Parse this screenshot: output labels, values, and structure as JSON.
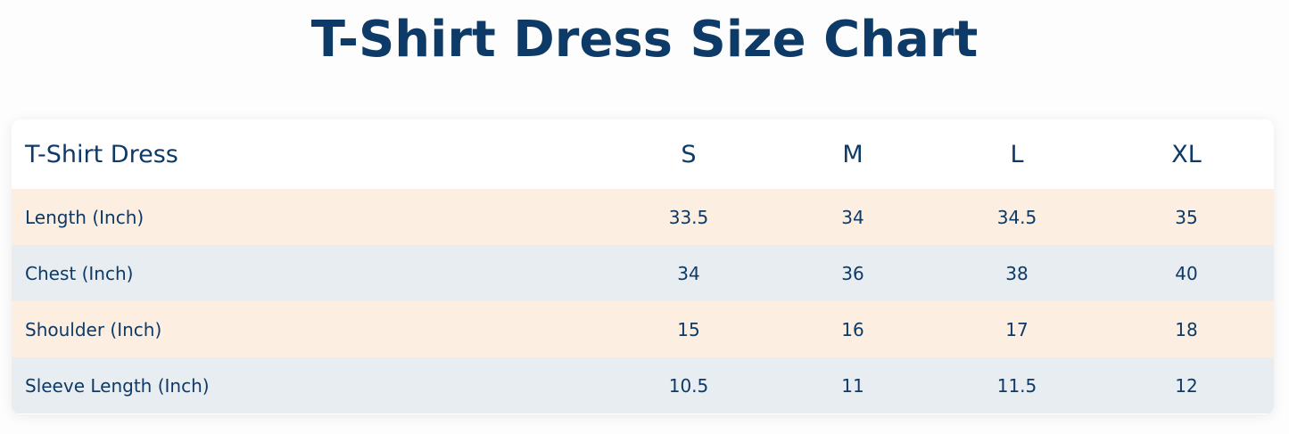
{
  "title": "T-Shirt Dress Size Chart",
  "table": {
    "header": [
      "T-Shirt Dress",
      "S",
      "M",
      "L",
      "XL"
    ],
    "rows": [
      [
        "Length (Inch)",
        "33.5",
        "34",
        "34.5",
        "35"
      ],
      [
        "Chest (Inch)",
        "34",
        "36",
        "38",
        "40"
      ],
      [
        "Shoulder (Inch)",
        "15",
        "16",
        "17",
        "18"
      ],
      [
        "Sleeve Length (Inch)",
        "10.5",
        "11",
        "11.5",
        "12"
      ]
    ]
  }
}
